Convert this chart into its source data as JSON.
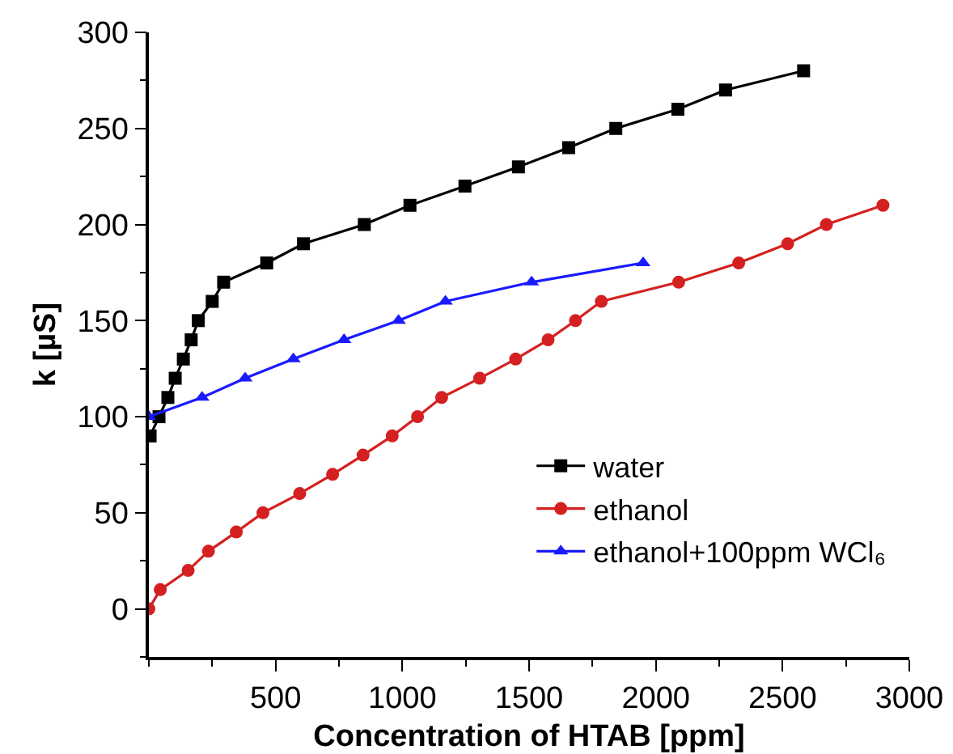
{
  "chart_data": {
    "type": "line",
    "xlabel": "Concentration of HTAB [ppm]",
    "ylabel": "k [µS]",
    "xlim": [
      0,
      3000
    ],
    "xticks": [
      500,
      1000,
      1500,
      2000,
      2500,
      3000
    ],
    "ylim": [
      -25,
      300
    ],
    "yticks": [
      0,
      50,
      100,
      150,
      200,
      250,
      300
    ],
    "grid": false,
    "legend": "bottom right",
    "line_style": "solid",
    "series": [
      {
        "name": "water",
        "color": "#000000",
        "marker": "square",
        "x": [
          5,
          40,
          75,
          104,
          136,
          167,
          195,
          250,
          295,
          465,
          610,
          850,
          1030,
          1247,
          1458,
          1656,
          1842,
          2087,
          2275,
          2583
        ],
        "values": [
          90,
          100,
          110,
          120,
          130,
          140,
          150,
          160,
          170,
          180,
          190,
          200,
          210,
          220,
          230,
          240,
          250,
          260,
          270,
          280
        ]
      },
      {
        "name": "ethanol",
        "color": "#d42020",
        "marker": "circle",
        "x": [
          0,
          45,
          155,
          235,
          345,
          450,
          595,
          725,
          845,
          960,
          1060,
          1155,
          1305,
          1447,
          1575,
          1683,
          1785,
          2090,
          2327,
          2520,
          2673,
          2896
        ],
        "values": [
          0,
          10,
          20,
          30,
          40,
          50,
          60,
          70,
          80,
          90,
          100,
          110,
          120,
          130,
          140,
          150,
          160,
          170,
          180,
          190,
          200,
          210
        ]
      },
      {
        "name": "ethanol+100ppm WCl₆",
        "color": "#1a1aff",
        "marker": "triangle",
        "x": [
          0,
          210,
          380,
          570,
          770,
          985,
          1170,
          1510,
          1950
        ],
        "values": [
          100,
          110,
          120,
          130,
          140,
          150,
          160,
          170,
          180
        ]
      }
    ]
  }
}
